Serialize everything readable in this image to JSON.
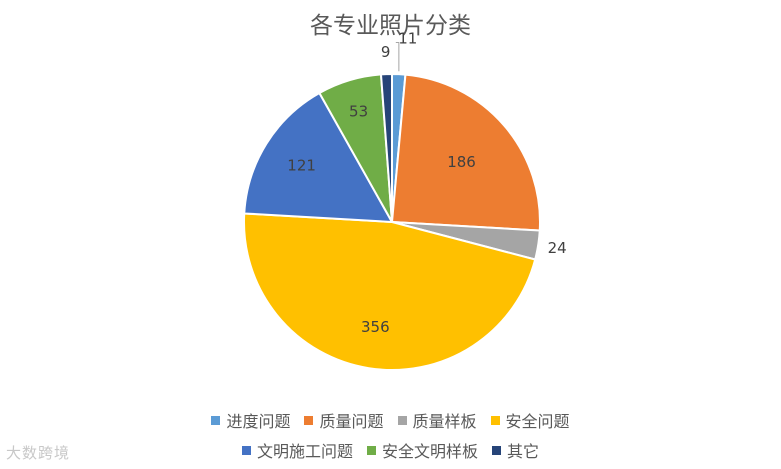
{
  "chart_data": {
    "type": "pie",
    "title": "各专业照片分类",
    "categories": [
      "进度问题",
      "质量问题",
      "质量样板",
      "安全问题",
      "文明施工问题",
      "安全文明样板",
      "其它"
    ],
    "values": [
      11,
      186,
      24,
      356,
      121,
      53,
      9
    ],
    "colors": [
      "#5B9BD5",
      "#ED7D31",
      "#A5A5A5",
      "#FFC000",
      "#4472C4",
      "#70AD47",
      "#264478"
    ],
    "legend_placement": "bottom"
  },
  "watermark": "大数跨境"
}
